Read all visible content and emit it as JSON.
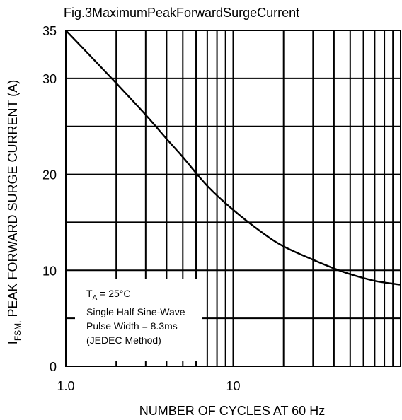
{
  "chart_data": {
    "type": "line",
    "title": "Fig.3MaximumPeakForwardSurgeCurrent",
    "xlabel": "NUMBER OF CYCLES AT 60 Hz",
    "ylabel_main": "I",
    "ylabel_sub": "FSM,",
    "ylabel_rest": " PEAK FORWARD SURGE CURRENT (A)",
    "x_scale": "log",
    "xlim": [
      1,
      100
    ],
    "ylim": [
      0,
      35
    ],
    "x_ticks": [
      {
        "value": 1,
        "label": "1.0"
      },
      {
        "value": 10,
        "label": "10"
      }
    ],
    "y_ticks": [
      {
        "value": 0,
        "label": "0"
      },
      {
        "value": 10,
        "label": "10"
      },
      {
        "value": 20,
        "label": "20"
      },
      {
        "value": 30,
        "label": "30"
      },
      {
        "value": 35,
        "label": "35"
      }
    ],
    "y_gridlines": [
      0,
      5,
      10,
      15,
      20,
      25,
      30,
      35
    ],
    "grid": true,
    "line_color": "#000000",
    "series": [
      {
        "x": [
          1,
          1.5,
          2,
          3,
          4,
          5,
          7,
          10,
          15,
          20,
          30,
          40,
          50,
          70,
          100
        ],
        "y": [
          35,
          31.8,
          29.5,
          26.2,
          23.7,
          21.8,
          18.8,
          16.3,
          13.9,
          12.5,
          11.1,
          10.2,
          9.6,
          8.9,
          8.5
        ]
      }
    ],
    "annotation": {
      "line1_main": "T",
      "line1_sub": "A",
      "line1_rest": " = 25°C",
      "line2": "Single Half Sine-Wave",
      "line3": "Pulse Width = 8.3ms",
      "line4": "(JEDEC Method)"
    }
  }
}
